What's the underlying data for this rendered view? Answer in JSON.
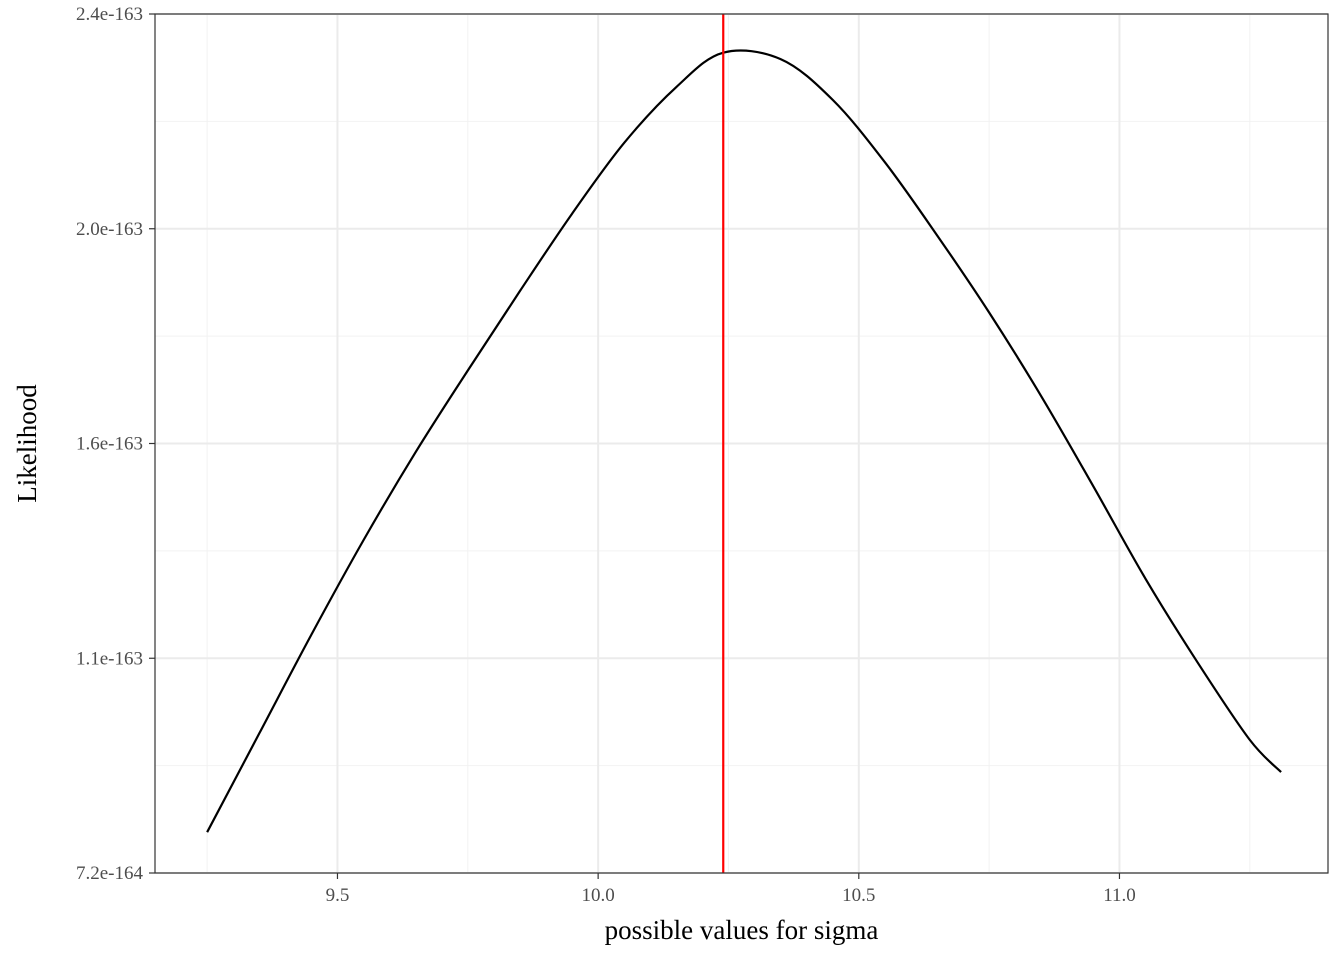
{
  "chart_data": {
    "type": "line",
    "title": "",
    "xlabel": "possible values for sigma",
    "ylabel": "Likelihood",
    "xlim": [
      9.15,
      11.4
    ],
    "x_ticks": [
      9.5,
      10.0,
      10.5,
      11.0
    ],
    "x_tick_labels": [
      "9.5",
      "10.0",
      "10.5",
      "11.0"
    ],
    "y_ticks": [
      0,
      1,
      2,
      3,
      4
    ],
    "y_tick_labels": [
      "7.2e-164",
      "1.1e-163",
      "1.6e-163",
      "2.0e-163",
      "2.4e-163"
    ],
    "y_scale": "log (tick positions are equally spaced in log scale)",
    "grid": true,
    "vline": {
      "x": 10.24,
      "color": "#ff0000"
    },
    "series": [
      {
        "color": "#000000",
        "x": [
          9.25,
          9.35,
          9.45,
          9.55,
          9.65,
          9.75,
          9.85,
          9.95,
          10.05,
          10.15,
          10.24,
          10.35,
          10.45,
          10.55,
          10.65,
          10.75,
          10.85,
          10.95,
          11.05,
          11.15,
          11.25,
          11.31
        ],
        "y": [
          0.19,
          0.65,
          1.11,
          1.55,
          1.96,
          2.34,
          2.71,
          3.07,
          3.4,
          3.66,
          3.82,
          3.79,
          3.6,
          3.31,
          2.97,
          2.61,
          2.22,
          1.8,
          1.37,
          0.98,
          0.62,
          0.47
        ],
        "y_unit_note": "y values are positions on the log-scaled axis in tick units (0 = 7.2e-164, 4 = 2.4e-163)"
      }
    ]
  },
  "colors": {
    "panel_border": "#333333",
    "grid_major": "#ebebeb",
    "grid_minor": "#f2f2f2",
    "curve": "#000000",
    "mle_line": "#ff0000"
  }
}
